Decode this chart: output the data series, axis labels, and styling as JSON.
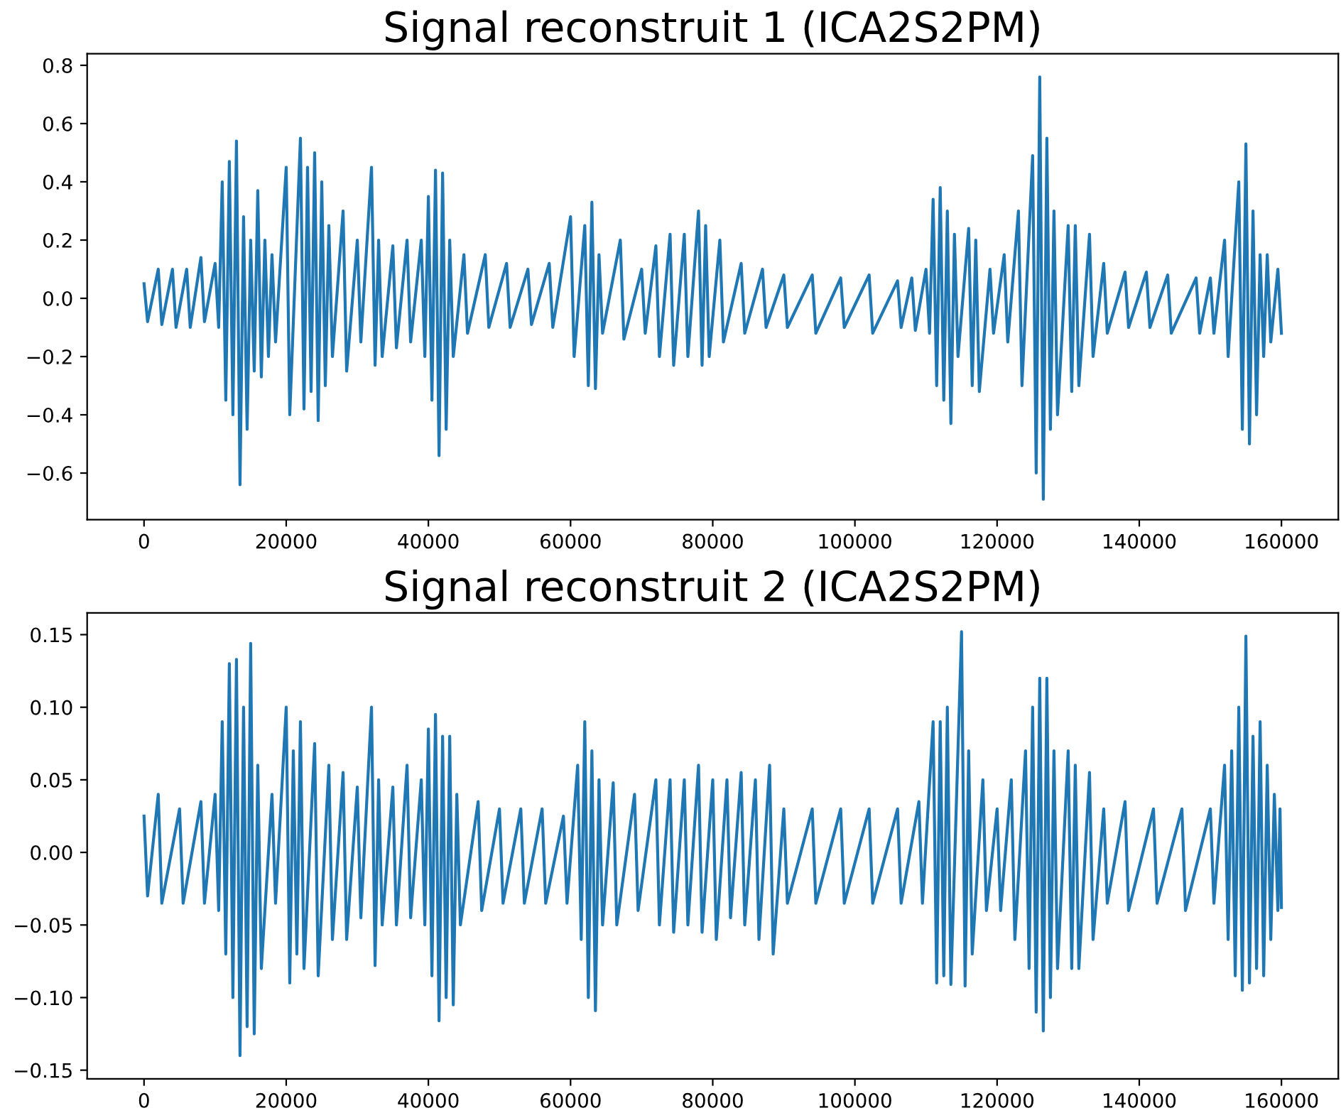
{
  "chart_data": [
    {
      "type": "line",
      "title": "Signal reconstruit 1 (ICA2S2PM)",
      "xlim": [
        -8000,
        168000
      ],
      "xticks": [
        0,
        20000,
        40000,
        60000,
        80000,
        100000,
        120000,
        140000,
        160000
      ],
      "ylim": [
        -0.76,
        0.84
      ],
      "yticks": [
        {
          "value": -0.6,
          "label": "−0.6"
        },
        {
          "value": -0.4,
          "label": "−0.4"
        },
        {
          "value": -0.2,
          "label": "−0.2"
        },
        {
          "value": 0.0,
          "label": "0.0"
        },
        0.2,
        0.4,
        0.6,
        0.8
      ],
      "grid": false,
      "legend": false,
      "marker": "none",
      "line_style": "solid",
      "series": [
        {
          "color": "#1f77b4",
          "x": [
            0,
            500,
            2000,
            2500,
            4000,
            4500,
            6000,
            6500,
            8000,
            8500,
            10000,
            10500,
            11000,
            11500,
            12000,
            12500,
            13000,
            13500,
            14000,
            14500,
            15000,
            15500,
            16000,
            16500,
            17000,
            17500,
            18000,
            18500,
            20000,
            20500,
            22000,
            22500,
            23000,
            23500,
            24000,
            24500,
            25000,
            25500,
            26000,
            26500,
            28000,
            28500,
            30000,
            30500,
            32000,
            32500,
            33000,
            33500,
            35000,
            35500,
            37000,
            37500,
            39000,
            39500,
            40000,
            40500,
            41000,
            41500,
            42000,
            42500,
            43000,
            43500,
            45000,
            45500,
            48000,
            48500,
            51000,
            51500,
            54000,
            54500,
            57000,
            57500,
            60000,
            60500,
            62000,
            62500,
            63000,
            63500,
            64000,
            64500,
            67000,
            67500,
            70000,
            70500,
            72000,
            72500,
            74000,
            74500,
            76000,
            76500,
            78000,
            78500,
            79000,
            79500,
            81000,
            81500,
            84000,
            84500,
            87000,
            87500,
            90000,
            90500,
            94000,
            94500,
            98000,
            98500,
            102000,
            102500,
            106000,
            106500,
            108000,
            108500,
            110000,
            110500,
            111000,
            111500,
            112000,
            112500,
            113000,
            113500,
            114000,
            114500,
            116000,
            116500,
            117000,
            117500,
            119000,
            119500,
            121000,
            121500,
            123000,
            123500,
            125000,
            125500,
            126000,
            126500,
            127000,
            127500,
            128000,
            128500,
            130000,
            130500,
            131000,
            131500,
            133000,
            133500,
            135000,
            135500,
            138000,
            138500,
            141000,
            141500,
            144000,
            144500,
            148000,
            148500,
            150000,
            150500,
            152000,
            152500,
            154000,
            154500,
            155000,
            155500,
            156000,
            156500,
            157000,
            157500,
            158000,
            158500,
            159500,
            160000
          ],
          "values": [
            0.05,
            -0.08,
            0.1,
            -0.09,
            0.1,
            -0.1,
            0.1,
            -0.1,
            0.14,
            -0.08,
            0.12,
            -0.1,
            0.4,
            -0.35,
            0.47,
            -0.4,
            0.54,
            -0.64,
            0.28,
            -0.45,
            0.2,
            -0.25,
            0.37,
            -0.27,
            0.2,
            -0.2,
            0.15,
            -0.15,
            0.45,
            -0.4,
            0.55,
            -0.38,
            0.45,
            -0.32,
            0.5,
            -0.42,
            0.4,
            -0.3,
            0.25,
            -0.2,
            0.3,
            -0.25,
            0.2,
            -0.15,
            0.45,
            -0.23,
            0.2,
            -0.2,
            0.18,
            -0.17,
            0.2,
            -0.15,
            0.2,
            -0.2,
            0.35,
            -0.35,
            0.44,
            -0.54,
            0.43,
            -0.45,
            0.2,
            -0.2,
            0.15,
            -0.12,
            0.15,
            -0.1,
            0.12,
            -0.1,
            0.1,
            -0.09,
            0.12,
            -0.1,
            0.28,
            -0.2,
            0.25,
            -0.3,
            0.33,
            -0.31,
            0.15,
            -0.12,
            0.2,
            -0.14,
            0.1,
            -0.12,
            0.18,
            -0.2,
            0.22,
            -0.23,
            0.22,
            -0.2,
            0.3,
            -0.23,
            0.25,
            -0.2,
            0.2,
            -0.15,
            0.12,
            -0.12,
            0.1,
            -0.1,
            0.08,
            -0.1,
            0.08,
            -0.12,
            0.07,
            -0.1,
            0.08,
            -0.12,
            0.06,
            -0.1,
            0.07,
            -0.11,
            0.1,
            -0.12,
            0.34,
            -0.3,
            0.38,
            -0.35,
            0.3,
            -0.43,
            0.22,
            -0.2,
            0.24,
            -0.3,
            0.2,
            -0.32,
            0.1,
            -0.12,
            0.15,
            -0.15,
            0.3,
            -0.3,
            0.49,
            -0.6,
            0.76,
            -0.69,
            0.55,
            -0.45,
            0.3,
            -0.4,
            0.25,
            -0.32,
            0.25,
            -0.3,
            0.22,
            -0.2,
            0.12,
            -0.12,
            0.09,
            -0.1,
            0.09,
            -0.1,
            0.08,
            -0.12,
            0.07,
            -0.12,
            0.07,
            -0.12,
            0.2,
            -0.2,
            0.4,
            -0.45,
            0.53,
            -0.5,
            0.3,
            -0.4,
            0.15,
            -0.2,
            0.15,
            -0.15,
            0.1,
            -0.12
          ]
        }
      ]
    },
    {
      "type": "line",
      "title": "Signal reconstruit 2 (ICA2S2PM)",
      "xlim": [
        -8000,
        168000
      ],
      "xticks": [
        0,
        20000,
        40000,
        60000,
        80000,
        100000,
        120000,
        140000,
        160000
      ],
      "ylim": [
        -0.156,
        0.165
      ],
      "yticks": [
        {
          "value": -0.15,
          "label": "−0.15"
        },
        {
          "value": -0.1,
          "label": "−0.10"
        },
        {
          "value": -0.05,
          "label": "−0.05"
        },
        {
          "value": 0.0,
          "label": "0.00"
        },
        {
          "value": 0.05,
          "label": "0.05"
        },
        {
          "value": 0.1,
          "label": "0.10"
        },
        {
          "value": 0.15,
          "label": "0.15"
        }
      ],
      "grid": false,
      "legend": false,
      "marker": "none",
      "line_style": "solid",
      "series": [
        {
          "color": "#1f77b4",
          "x": [
            0,
            500,
            2000,
            2500,
            5000,
            5500,
            8000,
            8500,
            10000,
            10500,
            11000,
            11500,
            12000,
            12500,
            13000,
            13500,
            14000,
            14500,
            15000,
            15500,
            16000,
            16500,
            18000,
            18500,
            20000,
            20500,
            21000,
            21500,
            22000,
            22500,
            24000,
            24500,
            26000,
            26500,
            28000,
            28500,
            30000,
            30500,
            32000,
            32500,
            33000,
            33500,
            35000,
            35500,
            37000,
            37500,
            39000,
            39500,
            40000,
            40500,
            41000,
            41500,
            42000,
            42500,
            43000,
            43500,
            44000,
            44500,
            47000,
            47500,
            50000,
            50500,
            53000,
            53500,
            56000,
            56500,
            59000,
            59500,
            61000,
            61500,
            62000,
            62500,
            63000,
            63500,
            64000,
            64500,
            66000,
            66500,
            69000,
            69500,
            72000,
            72500,
            74000,
            74500,
            76000,
            76500,
            78000,
            78500,
            80000,
            80500,
            82000,
            82500,
            84000,
            84500,
            86000,
            86500,
            88000,
            88500,
            90000,
            90500,
            94000,
            94500,
            98000,
            98500,
            102000,
            102500,
            106000,
            106500,
            109000,
            109500,
            111000,
            111500,
            112000,
            112500,
            113000,
            113500,
            115000,
            115500,
            116000,
            116500,
            118000,
            118500,
            120000,
            120500,
            122000,
            122500,
            124000,
            124500,
            125000,
            125500,
            126000,
            126500,
            127000,
            127500,
            128000,
            128500,
            130000,
            130500,
            131000,
            131500,
            133000,
            133500,
            135000,
            135500,
            138000,
            138500,
            142000,
            142500,
            146000,
            146500,
            150000,
            150500,
            152000,
            152500,
            153000,
            153500,
            154000,
            154500,
            155000,
            155500,
            156000,
            156500,
            157000,
            157500,
            158000,
            158500,
            159000,
            159500,
            159800,
            160000
          ],
          "values": [
            0.025,
            -0.03,
            0.04,
            -0.035,
            0.03,
            -0.035,
            0.035,
            -0.035,
            0.04,
            -0.04,
            0.09,
            -0.07,
            0.13,
            -0.1,
            0.133,
            -0.14,
            0.1,
            -0.12,
            0.144,
            -0.125,
            0.06,
            -0.08,
            0.04,
            -0.035,
            0.1,
            -0.09,
            0.07,
            -0.07,
            0.09,
            -0.08,
            0.075,
            -0.085,
            0.06,
            -0.06,
            0.055,
            -0.06,
            0.045,
            -0.045,
            0.1,
            -0.078,
            0.05,
            -0.05,
            0.045,
            -0.05,
            0.06,
            -0.045,
            0.05,
            -0.05,
            0.085,
            -0.085,
            0.095,
            -0.116,
            0.08,
            -0.1,
            0.08,
            -0.105,
            0.04,
            -0.05,
            0.035,
            -0.04,
            0.03,
            -0.035,
            0.03,
            -0.035,
            0.03,
            -0.035,
            0.025,
            -0.035,
            0.06,
            -0.06,
            0.09,
            -0.1,
            0.07,
            -0.109,
            0.05,
            -0.05,
            0.048,
            -0.05,
            0.04,
            -0.04,
            0.05,
            -0.05,
            0.05,
            -0.055,
            0.05,
            -0.05,
            0.06,
            -0.055,
            0.05,
            -0.06,
            0.05,
            -0.045,
            0.055,
            -0.05,
            0.05,
            -0.06,
            0.06,
            -0.07,
            0.03,
            -0.035,
            0.03,
            -0.035,
            0.03,
            -0.035,
            0.03,
            -0.035,
            0.03,
            -0.035,
            0.035,
            -0.035,
            0.09,
            -0.09,
            0.09,
            -0.085,
            0.1,
            -0.091,
            0.152,
            -0.092,
            0.07,
            -0.07,
            0.05,
            -0.04,
            0.03,
            -0.04,
            0.05,
            -0.06,
            0.07,
            -0.08,
            0.1,
            -0.11,
            0.12,
            -0.123,
            0.12,
            -0.1,
            0.07,
            -0.08,
            0.07,
            -0.08,
            0.06,
            -0.08,
            0.055,
            -0.06,
            0.03,
            -0.035,
            0.035,
            -0.04,
            0.03,
            -0.035,
            0.03,
            -0.04,
            0.03,
            -0.035,
            0.06,
            -0.06,
            0.07,
            -0.085,
            0.1,
            -0.095,
            0.149,
            -0.09,
            0.08,
            -0.08,
            0.09,
            -0.085,
            0.06,
            -0.06,
            0.04,
            -0.04,
            0.03,
            -0.038
          ]
        }
      ]
    }
  ]
}
